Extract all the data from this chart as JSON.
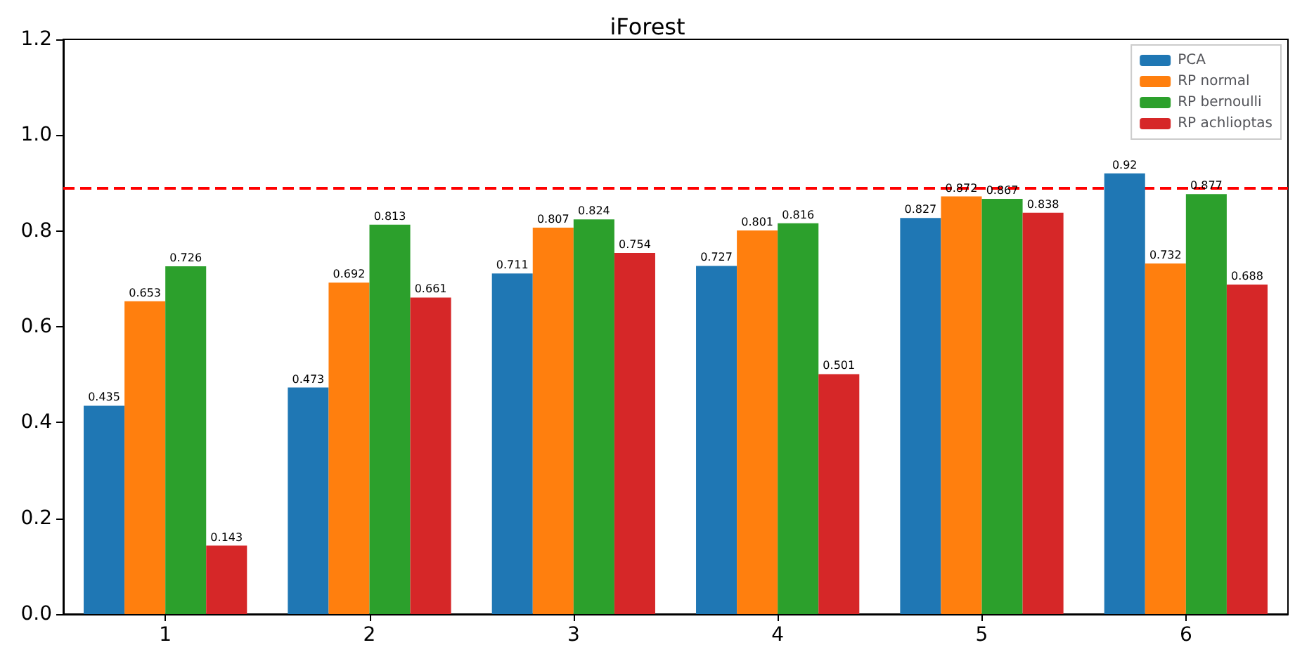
{
  "chart_data": {
    "type": "bar",
    "title": "iForest",
    "categories": [
      "1",
      "2",
      "3",
      "4",
      "5",
      "6"
    ],
    "series": [
      {
        "name": "PCA",
        "color": "#1f77b4",
        "values": [
          0.435,
          0.473,
          0.711,
          0.727,
          0.827,
          0.92
        ]
      },
      {
        "name": "RP normal",
        "color": "#ff7f0e",
        "values": [
          0.653,
          0.692,
          0.807,
          0.801,
          0.872,
          0.732
        ]
      },
      {
        "name": "RP bernoulli",
        "color": "#2ca02c",
        "values": [
          0.726,
          0.813,
          0.824,
          0.816,
          0.867,
          0.877
        ]
      },
      {
        "name": "RP achlioptas",
        "color": "#d62728",
        "values": [
          0.143,
          0.661,
          0.754,
          0.501,
          0.838,
          0.688
        ]
      }
    ],
    "ylim": [
      0,
      1.2
    ],
    "yticks": [
      {
        "value": 0,
        "label": "0.0"
      },
      {
        "value": 0.2,
        "label": "0.2"
      },
      {
        "value": 0.4,
        "label": "0.4"
      },
      {
        "value": 0.6,
        "label": "0.6"
      },
      {
        "value": 0.8,
        "label": "0.8"
      },
      {
        "value": 1.0,
        "label": "1.0"
      },
      {
        "value": 1.2,
        "label": "1.2"
      }
    ],
    "ref_lines": [
      {
        "axis": "y",
        "value": 0.888,
        "color": "#ff0000",
        "line_style": "dashed"
      }
    ],
    "data_labels": true,
    "grid": false,
    "legend": "top right"
  }
}
